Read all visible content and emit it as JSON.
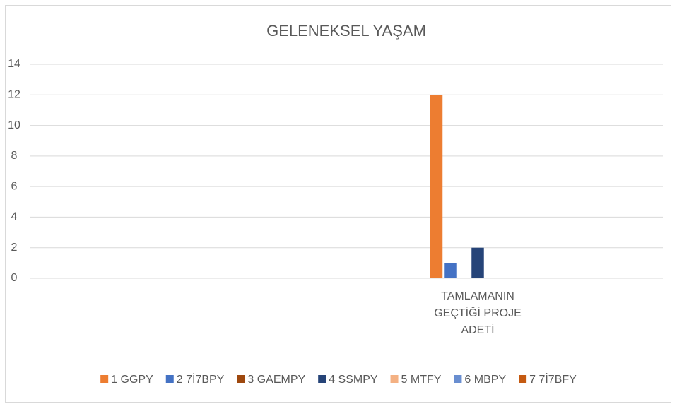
{
  "chart_data": {
    "type": "bar",
    "title": "GELENEKSEL YAŞAM",
    "categories": [
      null,
      "TAMLAMANIN GEÇTİĞİ PROJE ADETİ"
    ],
    "series": [
      {
        "name": "1 GGPY",
        "color": "#ed7d31",
        "values": [
          null,
          12
        ]
      },
      {
        "name": "2 7İ7BPY",
        "color": "#4472c4",
        "values": [
          null,
          1
        ]
      },
      {
        "name": "3 GAEMPY",
        "color": "#9e480e",
        "values": [
          null,
          0
        ]
      },
      {
        "name": "4 SSMPY",
        "color": "#264478",
        "values": [
          null,
          2
        ]
      },
      {
        "name": "5 MTFY",
        "color": "#f4b183",
        "values": [
          null,
          0
        ]
      },
      {
        "name": "6 MBPY",
        "color": "#698ed0",
        "values": [
          null,
          0
        ]
      },
      {
        "name": "7 7İ7BFY",
        "color": "#c55a11",
        "values": [
          null,
          0
        ]
      }
    ],
    "ylim": [
      0,
      14
    ],
    "yticks": [
      0,
      2,
      4,
      6,
      8,
      10,
      12,
      14
    ],
    "grid": true,
    "legend": "bottom"
  }
}
